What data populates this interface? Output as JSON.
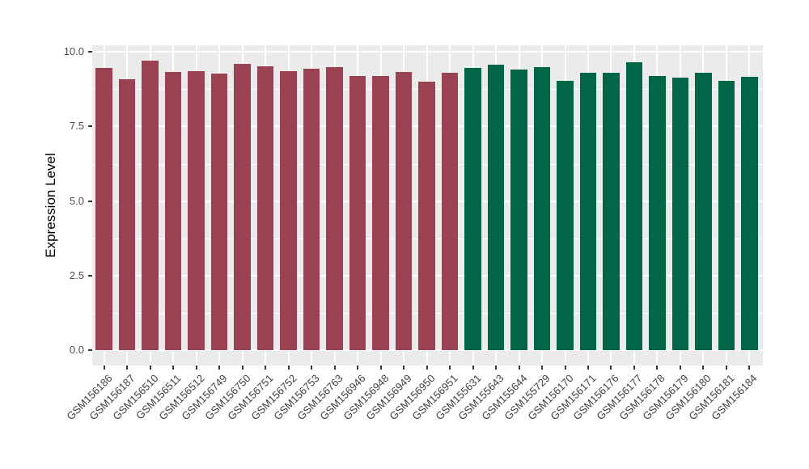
{
  "figure": {
    "background_color": "#FFFFFF",
    "panel_background_color": "#EBEBEB",
    "gridline_color": "#FFFFFF",
    "tick_color": "#333333"
  },
  "chart_data": {
    "type": "bar",
    "title": "",
    "xlabel": "",
    "ylabel": "Expression Level",
    "ylim": [
      0,
      10.2
    ],
    "grid": "on",
    "legend": "none",
    "y_ticks": {
      "labels": [
        "0.0",
        "2.5",
        "5.0",
        "7.5",
        "10.0"
      ],
      "values": [
        0,
        2.5,
        5,
        7.5,
        10
      ]
    },
    "y_minor_ticks": [
      1.25,
      3.75,
      6.25,
      8.75
    ],
    "categories": [
      "GSM156186",
      "GSM156187",
      "GSM156510",
      "GSM156511",
      "GSM156512",
      "GSM156749",
      "GSM156750",
      "GSM156751",
      "GSM156752",
      "GSM156753",
      "GSM156763",
      "GSM156946",
      "GSM156948",
      "GSM156949",
      "GSM156950",
      "GSM156951",
      "GSM155631",
      "GSM155643",
      "GSM155644",
      "GSM155729",
      "GSM156170",
      "GSM156171",
      "GSM156176",
      "GSM156177",
      "GSM156178",
      "GSM156179",
      "GSM156180",
      "GSM156181",
      "GSM156184"
    ],
    "values": [
      9.47,
      9.09,
      9.71,
      9.33,
      9.37,
      9.28,
      9.6,
      9.52,
      9.36,
      9.45,
      9.5,
      9.2,
      9.2,
      9.34,
      9.0,
      9.31,
      9.47,
      9.57,
      9.4,
      9.5,
      9.02,
      9.29,
      9.29,
      9.66,
      9.2,
      9.13,
      9.31,
      9.04,
      9.16
    ],
    "groups": [
      "a",
      "a",
      "a",
      "a",
      "a",
      "a",
      "a",
      "a",
      "a",
      "a",
      "a",
      "a",
      "a",
      "a",
      "a",
      "a",
      "b",
      "b",
      "b",
      "b",
      "b",
      "b",
      "b",
      "b",
      "b",
      "b",
      "b",
      "b",
      "b"
    ],
    "group_colors": {
      "a": "#9A4252",
      "b": "#016648"
    }
  }
}
